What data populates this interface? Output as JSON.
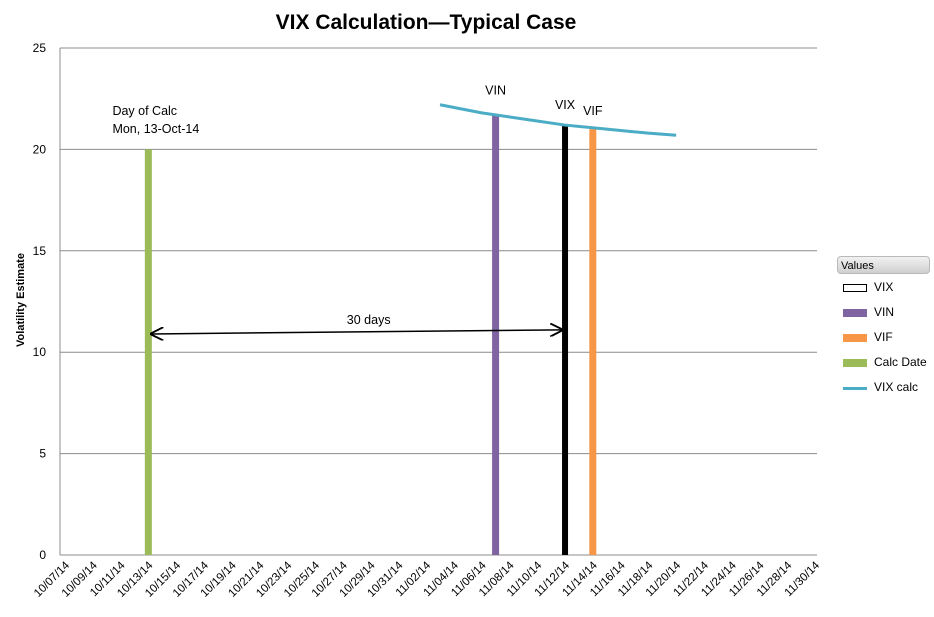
{
  "chart_data": {
    "type": "bar",
    "title": "VIX Calculation—Typical  Case",
    "ylabel": "Volatility Estimate",
    "xlabel": "",
    "ylim": [
      0,
      25
    ],
    "yticks": [
      0,
      5,
      10,
      15,
      20,
      25
    ],
    "grid": true,
    "x_tick_labels": [
      "10/07/14",
      "10/09/14",
      "10/11/14",
      "10/13/14",
      "10/15/14",
      "10/17/14",
      "10/19/14",
      "10/21/14",
      "10/23/14",
      "10/25/14",
      "10/27/14",
      "10/29/14",
      "10/31/14",
      "11/02/14",
      "11/04/14",
      "11/06/14",
      "11/08/14",
      "11/10/14",
      "11/12/14",
      "11/14/14",
      "11/16/14",
      "11/18/14",
      "11/20/14",
      "11/22/14",
      "11/24/14",
      "11/26/14",
      "11/28/14",
      "11/30/14"
    ],
    "series": [
      {
        "name": "VIX",
        "kind": "bar",
        "color": "#000000",
        "points": [
          {
            "x": "11/12/14",
            "y": 21.2
          }
        ]
      },
      {
        "name": "VIN",
        "kind": "bar",
        "color": "#8064a2",
        "points": [
          {
            "x": "11/07/14",
            "y": 21.7
          }
        ]
      },
      {
        "name": "VIF",
        "kind": "bar",
        "color": "#f79646",
        "points": [
          {
            "x": "11/14/14",
            "y": 21.0
          }
        ]
      },
      {
        "name": "Calc Date",
        "kind": "bar",
        "color": "#9bbb59",
        "points": [
          {
            "x": "10/13/14",
            "y": 20.0
          }
        ]
      },
      {
        "name": "VIX calc",
        "kind": "line",
        "color": "#4bacc6",
        "points": [
          {
            "x": "11/03/14",
            "y": 22.2
          },
          {
            "x": "11/06/14",
            "y": 21.8
          },
          {
            "x": "11/09/14",
            "y": 21.5
          },
          {
            "x": "11/12/14",
            "y": 21.2
          },
          {
            "x": "11/15/14",
            "y": 21.0
          },
          {
            "x": "11/18/14",
            "y": 20.8
          },
          {
            "x": "11/20/14",
            "y": 20.7
          }
        ]
      }
    ],
    "annotations": [
      {
        "id": "calc",
        "lines": [
          "Day of Calc",
          "Mon, 13-Oct-14"
        ],
        "x": "10/12/14",
        "y": 21.7
      },
      {
        "id": "vin",
        "lines": [
          "VIN"
        ],
        "x": "11/07/14",
        "y": 22.7
      },
      {
        "id": "vix",
        "lines": [
          "VIX"
        ],
        "x": "11/12/14",
        "y": 22.0
      },
      {
        "id": "vif",
        "lines": [
          "VIF"
        ],
        "x": "11/14/14",
        "y": 21.7
      }
    ],
    "arrow": {
      "label": "30 days",
      "from": {
        "x": "10/13/14",
        "y": 10.9
      },
      "to": {
        "x": "11/12/14",
        "y": 11.1
      },
      "label_y": 11.4
    },
    "legend": {
      "title": "Values",
      "placement": "right",
      "order": [
        "VIX",
        "VIN",
        "VIF",
        "Calc Date",
        "VIX calc"
      ]
    }
  }
}
